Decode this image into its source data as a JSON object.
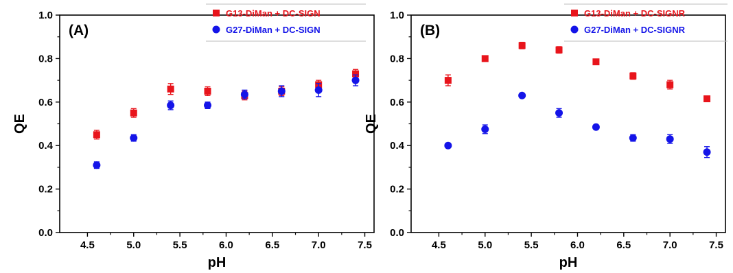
{
  "chart_data": [
    {
      "type": "scatter",
      "panel_label": "(A)",
      "xlabel": "pH",
      "ylabel": "QE",
      "xlim": [
        4.2,
        7.6
      ],
      "ylim": [
        0.0,
        1.0
      ],
      "xticks": [
        "4.5",
        "5.0",
        "5.5",
        "6.0",
        "6.5",
        "7.0",
        "7.5"
      ],
      "yticks": [
        "0.0",
        "0.2",
        "0.4",
        "0.6",
        "0.8",
        "1.0"
      ],
      "grid": false,
      "legend_position": "top-right",
      "series": [
        {
          "name": "G13-DiMan + DC-SIGN",
          "marker": "square",
          "color": "#e8141b",
          "x": [
            4.6,
            5.0,
            5.4,
            5.8,
            6.2,
            6.6,
            7.0,
            7.4
          ],
          "y": [
            0.45,
            0.55,
            0.66,
            0.65,
            0.63,
            0.65,
            0.68,
            0.73
          ],
          "err": [
            0.02,
            0.02,
            0.025,
            0.02,
            0.02,
            0.02,
            0.02,
            0.02
          ]
        },
        {
          "name": "G27-DiMan + DC-SIGN",
          "marker": "circle",
          "color": "#1414e8",
          "x": [
            4.6,
            5.0,
            5.4,
            5.8,
            6.2,
            6.6,
            7.0,
            7.4
          ],
          "y": [
            0.31,
            0.435,
            0.585,
            0.585,
            0.635,
            0.65,
            0.655,
            0.7
          ],
          "err": [
            0.015,
            0.015,
            0.02,
            0.015,
            0.02,
            0.025,
            0.03,
            0.025
          ]
        }
      ]
    },
    {
      "type": "scatter",
      "panel_label": "(B)",
      "xlabel": "pH",
      "ylabel": "QE",
      "xlim": [
        4.2,
        7.6
      ],
      "ylim": [
        0.0,
        1.0
      ],
      "xticks": [
        "4.5",
        "5.0",
        "5.5",
        "6.0",
        "6.5",
        "7.0",
        "7.5"
      ],
      "yticks": [
        "0.0",
        "0.2",
        "0.4",
        "0.6",
        "0.8",
        "1.0"
      ],
      "grid": false,
      "legend_position": "top-right",
      "series": [
        {
          "name": "G13-DiMan + DC-SIGNR",
          "marker": "square",
          "color": "#e8141b",
          "x": [
            4.6,
            5.0,
            5.4,
            5.8,
            6.2,
            6.6,
            7.0,
            7.4
          ],
          "y": [
            0.7,
            0.8,
            0.86,
            0.84,
            0.785,
            0.72,
            0.68,
            0.615
          ],
          "err": [
            0.025,
            0.01,
            0.015,
            0.015,
            0.01,
            0.015,
            0.02,
            0.01
          ]
        },
        {
          "name": "G27-DiMan + DC-SIGNR",
          "marker": "circle",
          "color": "#1414e8",
          "x": [
            4.6,
            5.0,
            5.4,
            5.8,
            6.2,
            6.6,
            7.0,
            7.4
          ],
          "y": [
            0.4,
            0.475,
            0.63,
            0.55,
            0.485,
            0.435,
            0.43,
            0.37
          ],
          "err": [
            0.01,
            0.02,
            0.01,
            0.02,
            0.01,
            0.015,
            0.02,
            0.025
          ]
        }
      ]
    }
  ]
}
